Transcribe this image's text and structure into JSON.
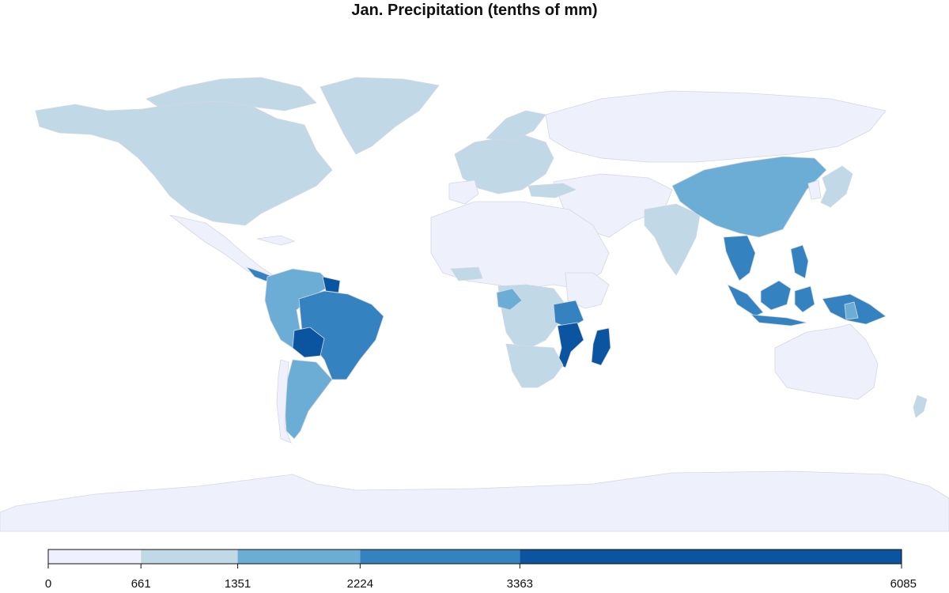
{
  "title": "Jan. Precipitation (tenths of mm)",
  "colors": {
    "c0": "#eef1fb",
    "c1": "#c1d8e6",
    "c2": "#6cadd6",
    "c3": "#3582c1",
    "c4": "#0b55a0",
    "border": "#d4d8e4"
  },
  "legend": {
    "breaks": [
      "0",
      "661",
      "1351",
      "2224",
      "3363",
      "6085"
    ],
    "break_values": [
      0,
      661,
      1351,
      2224,
      3363,
      6085
    ],
    "class_colors": [
      "#eef1fb",
      "#c1d8e6",
      "#6cadd6",
      "#3582c1",
      "#0b55a0"
    ]
  }
}
